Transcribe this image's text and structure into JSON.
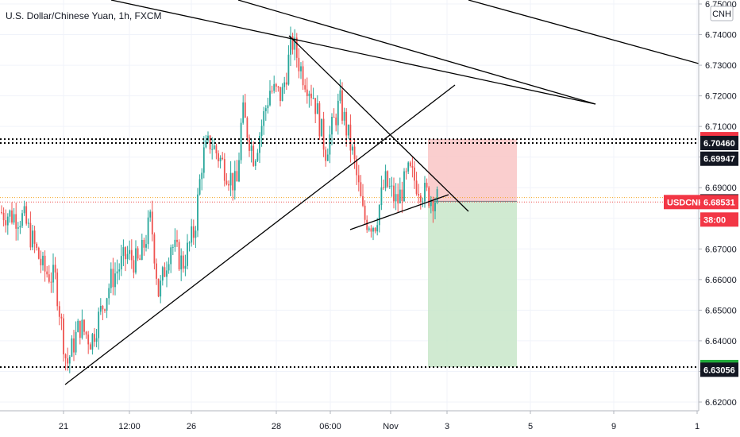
{
  "chart_title": "U.S. Dollar/Chinese Yuan, 1h, FXCM",
  "currency_badge": "CNH",
  "colors": {
    "up": "#26a69a",
    "down": "#ef5350",
    "stop_zone": "#f9c5c5",
    "target_zone": "#c8e6c9",
    "tag_red": "#f23645",
    "tag_black": "#131722",
    "tag_green": "#22ab3b"
  },
  "chart_data": {
    "type": "candlestick",
    "title": "U.S. Dollar/Chinese Yuan, 1h, FXCM",
    "symbol": "USDCNH",
    "ylim": [
      6.615,
      6.755
    ],
    "y_ticks": [
      "6.75000",
      "6.74000",
      "6.73000",
      "6.72000",
      "6.71000",
      "6.70000",
      "6.69000",
      "6.68000",
      "6.67000",
      "6.66000",
      "6.65000",
      "6.64000",
      "6.63000",
      "6.62000"
    ],
    "x_ticks": [
      "21",
      "12:00",
      "26",
      "28",
      "06:00",
      "Nov",
      "3",
      "5",
      "9",
      "1"
    ],
    "price_path": [
      [
        0,
        6.682
      ],
      [
        30,
        6.68
      ],
      [
        55,
        6.663
      ],
      [
        70,
        6.66
      ],
      [
        84,
        6.632
      ],
      [
        100,
        6.645
      ],
      [
        115,
        6.64
      ],
      [
        125,
        6.648
      ],
      [
        140,
        6.66
      ],
      [
        160,
        6.668
      ],
      [
        175,
        6.665
      ],
      [
        190,
        6.68
      ],
      [
        200,
        6.655
      ],
      [
        215,
        6.672
      ],
      [
        230,
        6.665
      ],
      [
        245,
        6.676
      ],
      [
        255,
        6.7
      ],
      [
        265,
        6.705
      ],
      [
        280,
        6.698
      ],
      [
        298,
        6.69
      ],
      [
        305,
        6.715
      ],
      [
        320,
        6.7
      ],
      [
        340,
        6.722
      ],
      [
        355,
        6.72
      ],
      [
        368,
        6.738
      ],
      [
        380,
        6.728
      ],
      [
        395,
        6.72
      ],
      [
        410,
        6.702
      ],
      [
        428,
        6.718
      ],
      [
        445,
        6.7
      ],
      [
        458,
        6.68
      ],
      [
        472,
        6.678
      ],
      [
        485,
        6.692
      ],
      [
        500,
        6.685
      ],
      [
        515,
        6.695
      ],
      [
        535,
        6.688
      ],
      [
        552,
        6.686
      ]
    ],
    "horizontal_levels": [
      {
        "price": "6.70587",
        "tag": "red",
        "style": "dotted"
      },
      {
        "price": "6.70460",
        "tag": "black",
        "style": "dotted"
      },
      {
        "price": "6.69947",
        "tag": "black",
        "style": "none"
      },
      {
        "price": "6.68554",
        "tag": "black",
        "style": "solid-short"
      },
      {
        "price": "6.63143",
        "tag": "green",
        "style": "dotted"
      },
      {
        "price": "6.63056",
        "tag": "black",
        "style": "none"
      }
    ],
    "current": {
      "symbol": "USDCNH",
      "price": "6.68531",
      "countdown": "38:00"
    },
    "position": {
      "entry": 6.68554,
      "stop": 6.70587,
      "target": 6.63143
    }
  }
}
